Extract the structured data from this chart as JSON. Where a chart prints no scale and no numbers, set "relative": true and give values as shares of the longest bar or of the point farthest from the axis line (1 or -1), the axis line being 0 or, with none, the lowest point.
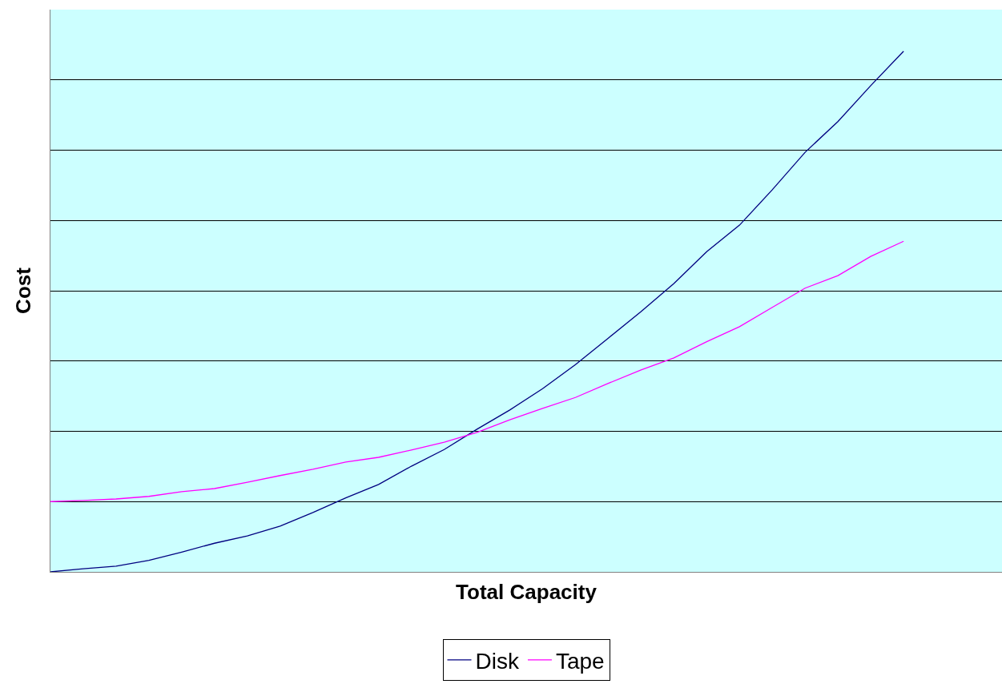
{
  "chart_data": {
    "type": "line",
    "relative": true,
    "xlabel": "Total Capacity",
    "ylabel": "Cost",
    "categories": [
      null,
      null,
      null,
      null,
      null,
      null,
      null,
      null,
      null,
      null,
      null,
      null,
      null,
      null,
      null,
      null,
      null,
      null,
      null,
      null,
      null,
      null,
      null,
      null,
      null,
      null,
      null,
      null,
      null,
      null
    ],
    "series": [
      {
        "name": "Disk",
        "color": "#000080",
        "values": [
          0,
          0.006,
          0.011,
          0.022,
          0.038,
          0.055,
          0.069,
          0.088,
          0.114,
          0.142,
          0.168,
          0.203,
          0.235,
          0.274,
          0.311,
          0.352,
          0.398,
          0.449,
          0.5,
          0.554,
          0.615,
          0.666,
          0.734,
          0.806,
          0.865,
          0.934,
          1,
          null,
          null,
          null
        ]
      },
      {
        "name": "Tape",
        "color": "#ff00ff",
        "values": [
          0.135,
          0.137,
          0.14,
          0.145,
          0.154,
          0.16,
          0.172,
          0.185,
          0.197,
          0.211,
          0.22,
          0.234,
          0.249,
          0.268,
          0.292,
          0.314,
          0.335,
          0.362,
          0.388,
          0.411,
          0.442,
          0.471,
          0.508,
          0.545,
          0.569,
          0.606,
          0.635,
          null,
          null,
          null
        ]
      }
    ],
    "grid": "y",
    "legend": "bottom",
    "marker": "none",
    "line_style": "solid"
  }
}
